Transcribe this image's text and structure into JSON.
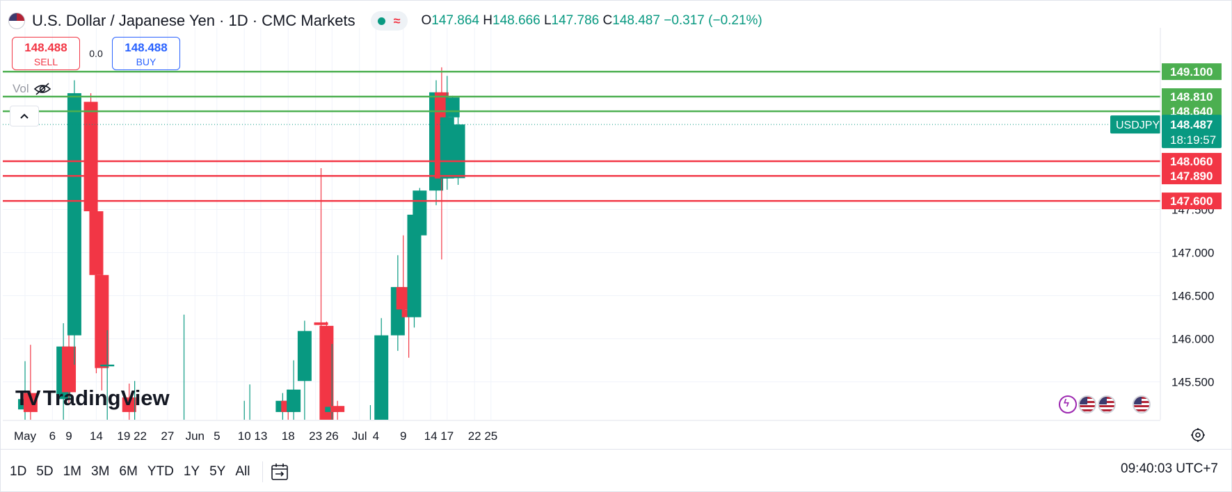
{
  "header": {
    "title": "U.S. Dollar / Japanese Yen · 1D · CMC Markets",
    "open_label": "O",
    "open": "147.864",
    "high_label": "H",
    "high": "148.666",
    "low_label": "L",
    "low": "147.786",
    "close_label": "C",
    "close": "148.487",
    "change": "−0.317 (−0.21%)"
  },
  "trade": {
    "sell_price": "148.488",
    "sell_label": "SELL",
    "spread": "0.0",
    "buy_price": "148.488",
    "buy_label": "BUY"
  },
  "volume_label": "Vol",
  "watermark": "TradingView",
  "time_ranges": [
    "1D",
    "5D",
    "1M",
    "3M",
    "6M",
    "YTD",
    "1Y",
    "5Y",
    "All"
  ],
  "clock": "09:40:03 UTC+7",
  "colors": {
    "up": "#089981",
    "down": "#f23645",
    "support_line": "#f23645",
    "resistance_line": "#4caf50"
  },
  "chart_data": {
    "type": "candlestick",
    "symbol": "USDJPY",
    "last_price": "148.487",
    "countdown": "18:19:57",
    "y_ticks": [
      "145.500",
      "146.000",
      "146.500",
      "147.000",
      "147.500"
    ],
    "x_ticks": [
      "May",
      "6",
      "9",
      "14",
      "19",
      "22",
      "27",
      "Jun",
      "5",
      "10",
      "13",
      "18",
      "23",
      "26",
      "Jul",
      "4",
      "9",
      "14",
      "17",
      "22",
      "25"
    ],
    "horizontal_levels": [
      {
        "value": 149.1,
        "label": "149.100",
        "kind": "resistance"
      },
      {
        "value": 148.81,
        "label": "148.810",
        "kind": "resistance"
      },
      {
        "value": 148.64,
        "label": "148.640",
        "kind": "resistance"
      },
      {
        "value": 148.06,
        "label": "148.060",
        "kind": "support"
      },
      {
        "value": 147.89,
        "label": "147.890",
        "kind": "support"
      },
      {
        "value": 147.6,
        "label": "147.600",
        "kind": "support"
      }
    ],
    "candles": [
      {
        "date": "May 1",
        "o": 145.18,
        "h": 145.74,
        "l": 145.05,
        "c": 145.3
      },
      {
        "date": "May 2",
        "o": 145.37,
        "h": 145.93,
        "l": 145.05,
        "c": 145.15
      },
      {
        "date": "May 8",
        "o": 145.3,
        "h": 146.18,
        "l": 145.05,
        "c": 145.91
      },
      {
        "date": "May 9",
        "o": 145.91,
        "h": 146.19,
        "l": 145.25,
        "c": 145.38
      },
      {
        "date": "May 10",
        "o": 146.04,
        "h": 149.0,
        "l": 145.7,
        "c": 148.85
      },
      {
        "date": "May 13",
        "o": 148.75,
        "h": 148.85,
        "l": 147.42,
        "c": 147.48
      },
      {
        "date": "May 14",
        "o": 147.48,
        "h": 147.7,
        "l": 145.6,
        "c": 146.74
      },
      {
        "date": "May 15",
        "o": 146.74,
        "h": 146.76,
        "l": 145.4,
        "c": 145.66
      },
      {
        "date": "May 16",
        "o": 145.68,
        "h": 146.1,
        "l": 145.05,
        "c": 145.7
      },
      {
        "date": "May 20",
        "o": 145.32,
        "h": 145.48,
        "l": 145.05,
        "c": 145.15
      },
      {
        "date": "May 21",
        "o": 145.05,
        "h": 145.51,
        "l": 145.05,
        "c": 145.05
      },
      {
        "date": "May 30",
        "o": 145.05,
        "h": 146.28,
        "l": 145.05,
        "c": 145.05
      },
      {
        "date": "Jun 10",
        "o": 145.05,
        "h": 145.28,
        "l": 145.05,
        "c": 145.05
      },
      {
        "date": "Jun 11",
        "o": 145.05,
        "h": 145.47,
        "l": 145.05,
        "c": 145.05
      },
      {
        "date": "Jun 17",
        "o": 145.15,
        "h": 145.37,
        "l": 145.05,
        "c": 145.28
      },
      {
        "date": "Jun 18",
        "o": 145.28,
        "h": 145.41,
        "l": 145.05,
        "c": 145.15
      },
      {
        "date": "Jun 19",
        "o": 145.15,
        "h": 145.75,
        "l": 145.05,
        "c": 145.41
      },
      {
        "date": "Jun 21",
        "o": 145.51,
        "h": 146.21,
        "l": 145.05,
        "c": 146.09
      },
      {
        "date": "Jun 24",
        "o": 146.19,
        "h": 147.98,
        "l": 146.03,
        "c": 146.16
      },
      {
        "date": "Jun 25",
        "o": 146.15,
        "h": 146.2,
        "l": 145.05,
        "c": 145.05
      },
      {
        "date": "Jun 26",
        "o": 145.15,
        "h": 145.94,
        "l": 145.05,
        "c": 145.21
      },
      {
        "date": "Jun 27",
        "o": 145.22,
        "h": 145.28,
        "l": 145.05,
        "c": 145.15
      },
      {
        "date": "Jul 3",
        "o": 145.05,
        "h": 145.23,
        "l": 145.05,
        "c": 145.05
      },
      {
        "date": "Jul 5",
        "o": 145.05,
        "h": 146.24,
        "l": 145.05,
        "c": 146.04
      },
      {
        "date": "Jul 8",
        "o": 146.04,
        "h": 146.97,
        "l": 145.86,
        "c": 146.6
      },
      {
        "date": "Jul 9",
        "o": 146.6,
        "h": 147.2,
        "l": 146.25,
        "c": 146.34
      },
      {
        "date": "Jul 10",
        "o": 146.34,
        "h": 146.78,
        "l": 145.78,
        "c": 146.25
      },
      {
        "date": "Jul 11",
        "o": 146.25,
        "h": 147.5,
        "l": 146.13,
        "c": 147.44
      },
      {
        "date": "Jul 12",
        "o": 147.2,
        "h": 147.75,
        "l": 146.85,
        "c": 147.72
      },
      {
        "date": "Jul 15",
        "o": 147.72,
        "h": 149.0,
        "l": 147.55,
        "c": 148.86
      },
      {
        "date": "Jul 16",
        "o": 148.86,
        "h": 149.15,
        "l": 146.92,
        "c": 147.86
      },
      {
        "date": "Jul 17",
        "o": 147.86,
        "h": 149.05,
        "l": 147.73,
        "c": 148.57
      },
      {
        "date": "Jul 18",
        "o": 148.57,
        "h": 148.82,
        "l": 148.15,
        "c": 148.8
      },
      {
        "date": "Jul 19",
        "o": 147.864,
        "h": 148.666,
        "l": 147.786,
        "c": 148.487
      }
    ]
  }
}
